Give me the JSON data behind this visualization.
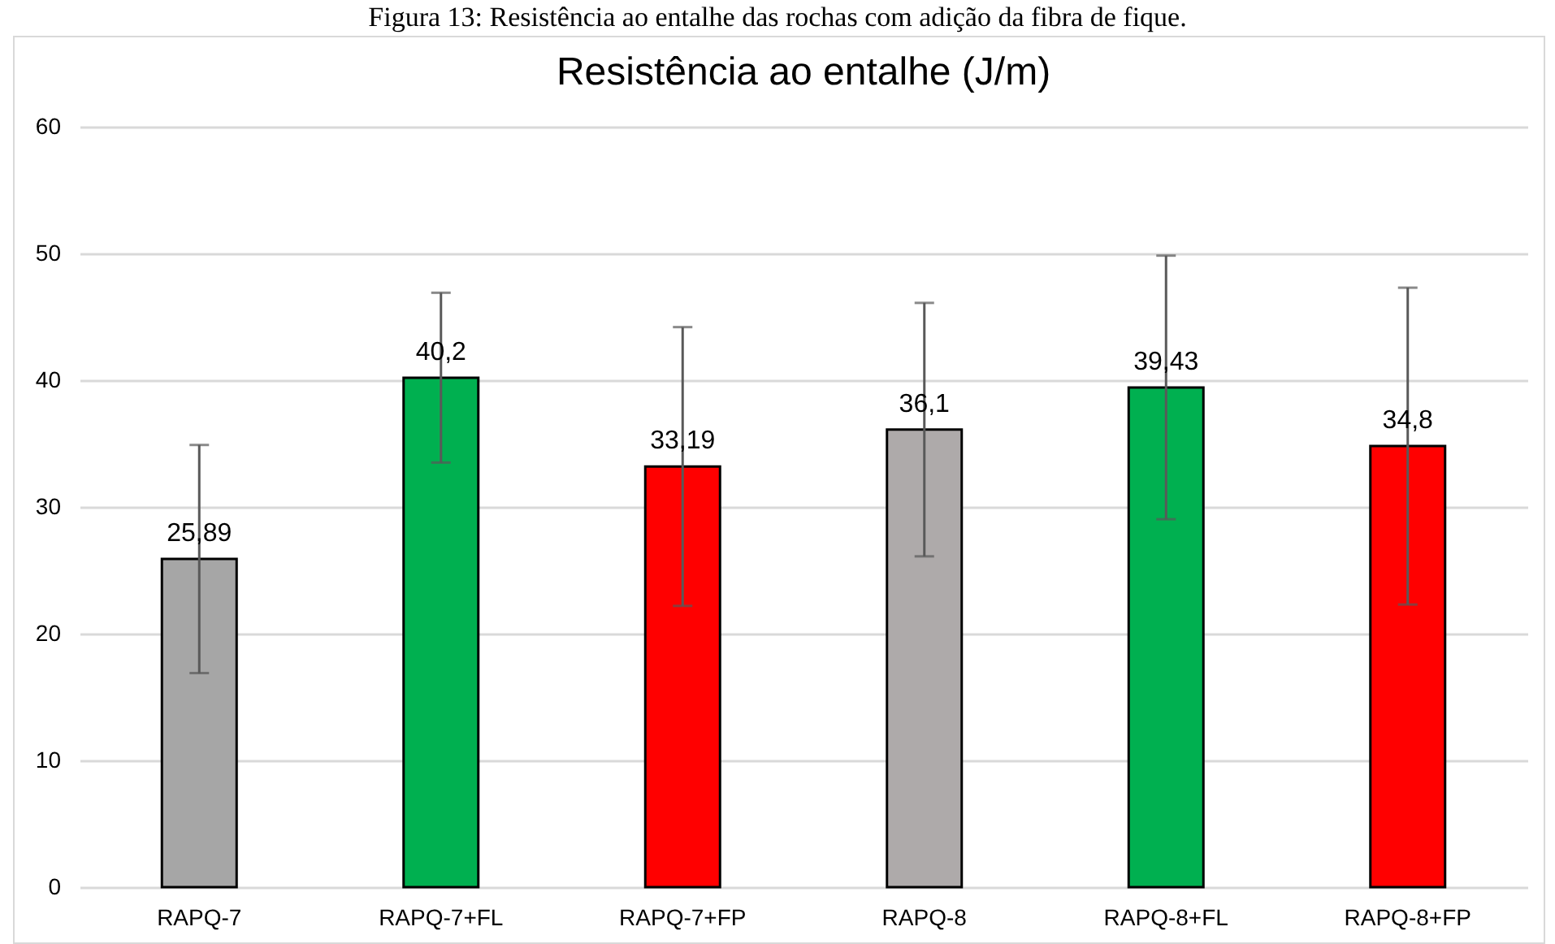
{
  "chart_data": {
    "type": "bar",
    "title": "Resistência ao entalhe (J/m)",
    "annotations": [
      "Figura 13: Resistência ao entalhe das rochas com adição da fibra de fique."
    ],
    "categories": [
      "RAPQ-7",
      "RAPQ-7+FL",
      "RAPQ-7+FP",
      "RAPQ-8",
      "RAPQ-8+FL",
      "RAPQ-8+FP"
    ],
    "values": [
      25.89,
      40.2,
      33.19,
      36.1,
      39.43,
      34.8
    ],
    "value_labels": [
      "25,89",
      "40,2",
      "33,19",
      "36,1",
      "39,43",
      "34,8"
    ],
    "errors": [
      9,
      6.7,
      11,
      10,
      10.4,
      12.5
    ],
    "colors": [
      "#a6a6a6",
      "#00b050",
      "#ff0000",
      "#aeaaaa",
      "#00b050",
      "#ff0000"
    ],
    "ylim": [
      0,
      60
    ],
    "yticks": [
      0,
      10,
      20,
      30,
      40,
      50,
      60
    ],
    "grid": "y"
  }
}
